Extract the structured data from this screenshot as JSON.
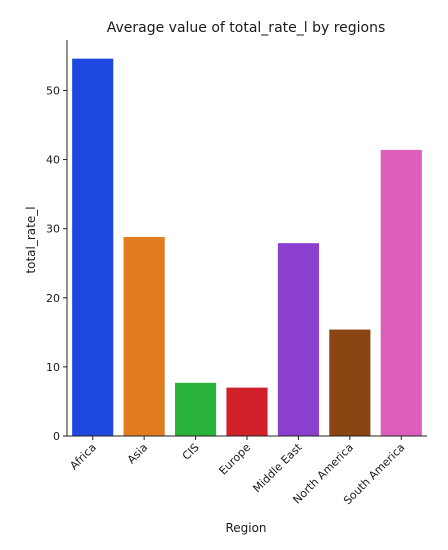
{
  "chart_data": {
    "type": "bar",
    "title": "Average value of total_rate_l by regions",
    "xlabel": "Region",
    "ylabel": "total_rate_l",
    "categories": [
      "Africa",
      "Asia",
      "CIS",
      "Europe",
      "Middle East",
      "North America",
      "South America"
    ],
    "values": [
      54.6,
      28.8,
      7.7,
      7.0,
      27.9,
      15.4,
      41.4
    ],
    "colors": [
      "#1f48e0",
      "#e07c1f",
      "#2ab33c",
      "#d0202a",
      "#8a3fcf",
      "#8b4512",
      "#de5ebb"
    ],
    "yticks": [
      0,
      10,
      20,
      30,
      40,
      50
    ],
    "ylim": [
      0,
      57.3
    ],
    "grid": false,
    "legend": "none"
  }
}
